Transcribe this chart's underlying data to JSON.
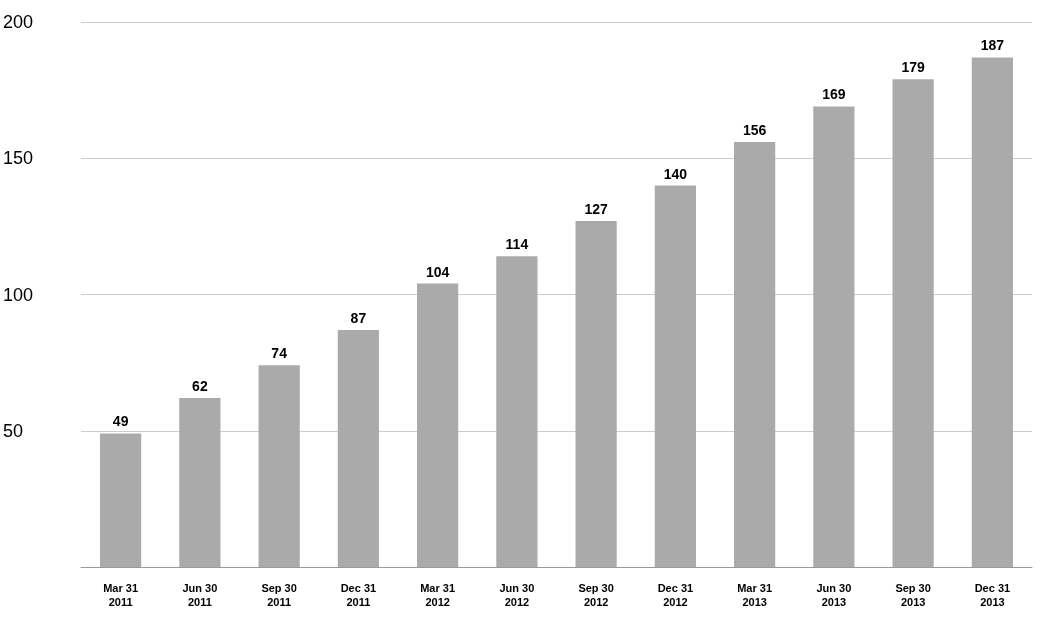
{
  "chart_data": {
    "type": "bar",
    "categories": [
      "Mar 31\n2011",
      "Jun 30\n2011",
      "Sep 30\n2011",
      "Dec 31\n2011",
      "Mar 31\n2012",
      "Jun 30\n2012",
      "Sep 30\n2012",
      "Dec 31\n2012",
      "Mar 31\n2013",
      "Jun 30\n2013",
      "Sep 30\n2013",
      "Dec 31\n2013"
    ],
    "values": [
      49,
      62,
      74,
      87,
      104,
      114,
      127,
      140,
      156,
      169,
      179,
      187
    ],
    "color": "#aaaaaa",
    "ylim": [
      0,
      200
    ],
    "yticks": [
      50,
      100,
      150,
      200
    ],
    "grid": "y",
    "data_labels": true
  }
}
